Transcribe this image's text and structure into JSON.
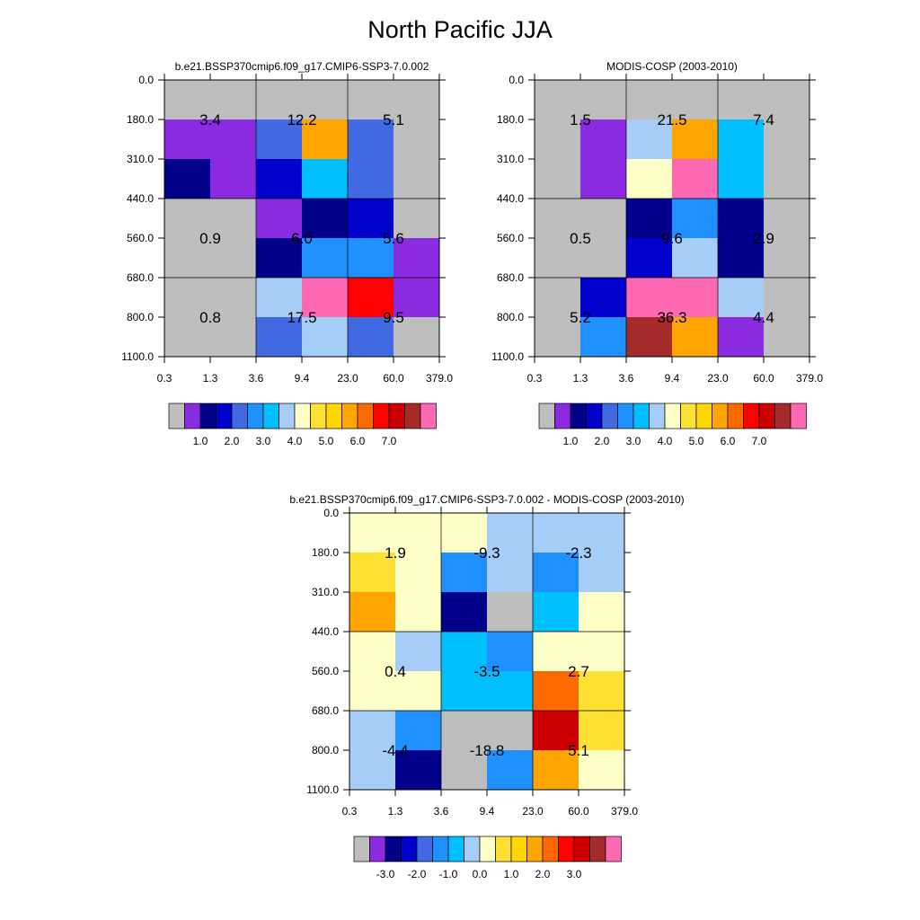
{
  "figure_title": "North Pacific JJA",
  "chart_data": [
    {
      "type": "heatmap",
      "title": "b.e21.BSSP370cmip6.f09_g17.CMIP6-SSP3-7.0.002",
      "x_ticks": [
        "0.3",
        "1.3",
        "3.6",
        "9.4",
        "23.0",
        "60.0",
        "379.0"
      ],
      "y_ticks": [
        "0.0",
        "180.0",
        "310.0",
        "440.0",
        "560.0",
        "680.0",
        "800.0",
        "1100.0"
      ],
      "cells": [
        [
          0,
          0,
          0,
          0,
          0,
          0
        ],
        [
          1,
          1,
          4,
          11,
          4,
          0
        ],
        [
          2,
          1,
          3,
          6,
          4,
          0
        ],
        [
          0,
          0,
          1,
          2,
          3,
          0
        ],
        [
          0,
          0,
          2,
          5,
          5,
          1
        ],
        [
          0,
          0,
          7,
          16,
          13,
          1
        ],
        [
          0,
          0,
          4,
          7,
          4,
          0
        ]
      ],
      "block_labels": [
        [
          "3.4",
          "12.2",
          "5.1"
        ],
        [
          "0.9",
          "6.0",
          "5.6"
        ],
        [
          "0.8",
          "17.5",
          "9.5"
        ]
      ],
      "colorbar_labels": [
        "1.0",
        "2.0",
        "3.0",
        "4.0",
        "5.0",
        "6.0",
        "7.0"
      ]
    },
    {
      "type": "heatmap",
      "title": "MODIS-COSP (2003-2010)",
      "x_ticks": [
        "0.3",
        "1.3",
        "3.6",
        "9.4",
        "23.0",
        "60.0",
        "379.0"
      ],
      "y_ticks": [
        "0.0",
        "180.0",
        "310.0",
        "440.0",
        "560.0",
        "680.0",
        "800.0",
        "1100.0"
      ],
      "cells": [
        [
          0,
          0,
          0,
          0,
          0,
          0
        ],
        [
          0,
          1,
          7,
          11,
          6,
          0
        ],
        [
          0,
          1,
          8,
          16,
          6,
          0
        ],
        [
          0,
          0,
          2,
          5,
          2,
          0
        ],
        [
          0,
          0,
          3,
          7,
          2,
          0
        ],
        [
          0,
          3,
          16,
          16,
          7,
          0
        ],
        [
          0,
          5,
          15,
          11,
          1,
          0
        ]
      ],
      "block_labels": [
        [
          "1.5",
          "21.5",
          "7.4"
        ],
        [
          "0.5",
          "9.6",
          "2.9"
        ],
        [
          "5.2",
          "36.3",
          "4.4"
        ]
      ],
      "colorbar_labels": [
        "1.0",
        "2.0",
        "3.0",
        "4.0",
        "5.0",
        "6.0",
        "7.0"
      ]
    },
    {
      "type": "heatmap",
      "title": "b.e21.BSSP370cmip6.f09_g17.CMIP6-SSP3-7.0.002 - MODIS-COSP (2003-2010)",
      "x_ticks": [
        "0.3",
        "1.3",
        "3.6",
        "9.4",
        "23.0",
        "60.0",
        "379.0"
      ],
      "y_ticks": [
        "0.0",
        "180.0",
        "310.0",
        "440.0",
        "560.0",
        "680.0",
        "800.0",
        "1100.0"
      ],
      "cells": [
        [
          8,
          8,
          8,
          7,
          7,
          7
        ],
        [
          9,
          8,
          5,
          7,
          5,
          7
        ],
        [
          11,
          8,
          2,
          0,
          6,
          8
        ],
        [
          8,
          7,
          6,
          5,
          8,
          8
        ],
        [
          8,
          8,
          6,
          6,
          12,
          9
        ],
        [
          7,
          5,
          0,
          0,
          14,
          9
        ],
        [
          7,
          2,
          0,
          5,
          11,
          8
        ]
      ],
      "block_labels": [
        [
          "1.9",
          "-9.3",
          "-2.3"
        ],
        [
          "0.4",
          "-3.5",
          "2.7"
        ],
        [
          "-4.4",
          "-18.8",
          "5.1"
        ]
      ],
      "colorbar_labels": [
        "-3.0",
        "-2.0",
        "-1.0",
        "0.0",
        "1.0",
        "2.0",
        "3.0"
      ]
    }
  ],
  "palette": [
    "#bebebe",
    "#8a2be2",
    "#00008b",
    "#0000cd",
    "#4169e1",
    "#1e90ff",
    "#00bfff",
    "#a6cdf7",
    "#ffffc8",
    "#ffe135",
    "#ffd700",
    "#ffa500",
    "#ff6a00",
    "#ff0000",
    "#cc0000",
    "#a52a2a",
    "#ff69b4"
  ]
}
